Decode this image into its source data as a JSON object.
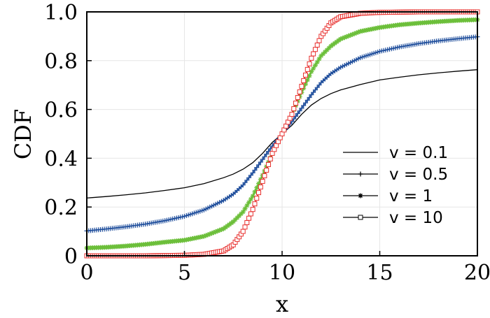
{
  "chart_data": {
    "type": "line",
    "title": "",
    "xlabel": "x",
    "ylabel": "CDF",
    "xlim": [
      0,
      20
    ],
    "ylim": [
      0,
      1
    ],
    "xticks": [
      0,
      5,
      10,
      15,
      20
    ],
    "xtick_labels": [
      "0",
      "5",
      "10",
      "15",
      "20"
    ],
    "yticks": [
      0,
      0.2,
      0.4,
      0.6,
      0.8,
      1.0
    ],
    "ytick_labels": [
      "0",
      "0.2",
      "0.4",
      "0.6",
      "0.8",
      "1.0"
    ],
    "grid": true,
    "legend_position": "right",
    "x": [
      0,
      1,
      2,
      3,
      4,
      5,
      6,
      7,
      7.5,
      8,
      8.5,
      9,
      9.5,
      10,
      10.5,
      11,
      11.5,
      12,
      12.5,
      13,
      14,
      15,
      16,
      17,
      18,
      19,
      20
    ],
    "series": [
      {
        "name": "v = 0.1",
        "color": "#000000",
        "marker": "none",
        "values": [
          0.237,
          0.243,
          0.25,
          0.258,
          0.268,
          0.279,
          0.296,
          0.32,
          0.335,
          0.355,
          0.382,
          0.42,
          0.465,
          0.5,
          0.535,
          0.58,
          0.618,
          0.645,
          0.665,
          0.68,
          0.702,
          0.721,
          0.732,
          0.742,
          0.75,
          0.757,
          0.763
        ]
      },
      {
        "name": "v = 0.5",
        "color": "#1f4e9c",
        "marker": "plus",
        "values": [
          0.102,
          0.11,
          0.119,
          0.13,
          0.144,
          0.162,
          0.188,
          0.227,
          0.253,
          0.29,
          0.34,
          0.395,
          0.45,
          0.5,
          0.55,
          0.605,
          0.66,
          0.71,
          0.747,
          0.773,
          0.812,
          0.838,
          0.856,
          0.87,
          0.881,
          0.89,
          0.898
        ]
      },
      {
        "name": "v = 1",
        "color": "#6cbf3a",
        "marker": "star",
        "values": [
          0.032,
          0.035,
          0.04,
          0.047,
          0.056,
          0.064,
          0.08,
          0.111,
          0.14,
          0.18,
          0.245,
          0.33,
          0.42,
          0.5,
          0.58,
          0.67,
          0.755,
          0.82,
          0.86,
          0.889,
          0.92,
          0.936,
          0.947,
          0.954,
          0.96,
          0.965,
          0.968
        ]
      },
      {
        "name": "v = 10",
        "color": "#e8302e",
        "marker": "square",
        "values": [
          0.0,
          0.0,
          0.0,
          0.0,
          0.001,
          0.002,
          0.006,
          0.02,
          0.045,
          0.1,
          0.19,
          0.305,
          0.42,
          0.5,
          0.58,
          0.695,
          0.81,
          0.9,
          0.955,
          0.98,
          0.994,
          0.998,
          0.999,
          1.0,
          1.0,
          1.0,
          1.0
        ]
      }
    ]
  }
}
